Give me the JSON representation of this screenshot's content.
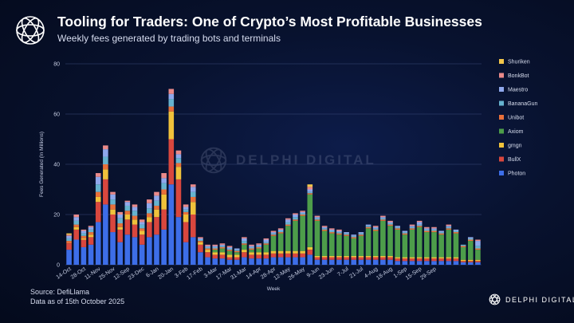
{
  "header": {
    "title": "Tooling for Traders: One of Crypto’s Most Profitable Businesses",
    "subtitle": "Weekly fees generated by trading bots and terminals"
  },
  "watermark": {
    "text": "DELPHI DIGITAL"
  },
  "footer": {
    "source_line1": "Source: DefiLlama",
    "source_line2": "Data as of 15th October 2025",
    "brand": "DELPHI DIGITAL"
  },
  "chart_data": {
    "type": "bar",
    "stacked": true,
    "ylabel": "Fees Generated (In Millions)",
    "xlabel": "Week",
    "ylim": [
      0,
      80
    ],
    "yticks": [
      0,
      20,
      40,
      60,
      80
    ],
    "grid": true,
    "legend_position": "right",
    "xtick_labels": [
      "14-Oct",
      "28-Oct",
      "11-Nov",
      "25-Nov",
      "12-Sep",
      "23-Dec",
      "6-Jan",
      "20-Jan",
      "3-Feb",
      "17-Feb",
      "3-Mar",
      "17-Mar",
      "31-Mar",
      "14-Apr",
      "28-Apr",
      "12-May",
      "26-May",
      "9-Jun",
      "23-Jun",
      "7-Jul",
      "21-Jul",
      "4-Aug",
      "18-Aug",
      "1-Sep",
      "15-Sep",
      "29-Sep"
    ],
    "series_order": [
      "Photon",
      "BullX",
      "gmgn",
      "Axiom",
      "Unibot",
      "BananaGun",
      "Maestro",
      "BonkBot",
      "Shuriken"
    ],
    "colors": {
      "Photon": "#3d6ee8",
      "BullX": "#d9473e",
      "gmgn": "#f0c23b",
      "Axiom": "#4d9d4a",
      "Unibot": "#e8703a",
      "BananaGun": "#66b3cf",
      "Maestro": "#8fa8ec",
      "BonkBot": "#ea8a8a",
      "Shuriken": "#f3c64a"
    },
    "legend_order": [
      "Shuriken",
      "BonkBot",
      "Maestro",
      "BananaGun",
      "Unibot",
      "Axiom",
      "gmgn",
      "BullX",
      "Photon"
    ],
    "weeks": [
      {
        "Photon": 6,
        "BullX": 2.5,
        "gmgn": 0,
        "Axiom": 0,
        "Unibot": 1,
        "BananaGun": 1,
        "Maestro": 1,
        "BonkBot": 0.5,
        "Shuriken": 0.5
      },
      {
        "Photon": 10,
        "BullX": 4,
        "gmgn": 1,
        "Axiom": 0,
        "Unibot": 1,
        "BananaGun": 1.5,
        "Maestro": 1.5,
        "BonkBot": 1,
        "Shuriken": 0
      },
      {
        "Photon": 7,
        "BullX": 3,
        "gmgn": 0.5,
        "Axiom": 0,
        "Unibot": 1,
        "BananaGun": 1,
        "Maestro": 1,
        "BonkBot": 0.5,
        "Shuriken": 0
      },
      {
        "Photon": 8,
        "BullX": 3,
        "gmgn": 1,
        "Axiom": 0,
        "Unibot": 1,
        "BananaGun": 1,
        "Maestro": 1,
        "BonkBot": 0.5,
        "Shuriken": 0
      },
      {
        "Photon": 17,
        "BullX": 8,
        "gmgn": 2,
        "Axiom": 0,
        "Unibot": 2,
        "BananaGun": 3,
        "Maestro": 3,
        "BonkBot": 1.5,
        "Shuriken": 0
      },
      {
        "Photon": 24,
        "BullX": 10,
        "gmgn": 4,
        "Axiom": 0,
        "Unibot": 2,
        "BananaGun": 3,
        "Maestro": 3,
        "BonkBot": 1.5,
        "Shuriken": 0
      },
      {
        "Photon": 13,
        "BullX": 7,
        "gmgn": 2,
        "Axiom": 0,
        "Unibot": 2,
        "BananaGun": 2,
        "Maestro": 2,
        "BonkBot": 1,
        "Shuriken": 0
      },
      {
        "Photon": 9,
        "BullX": 5,
        "gmgn": 1,
        "Axiom": 0,
        "Unibot": 1.5,
        "BananaGun": 2,
        "Maestro": 1.5,
        "BonkBot": 1,
        "Shuriken": 0
      },
      {
        "Photon": 12,
        "BullX": 6,
        "gmgn": 2,
        "Axiom": 0,
        "Unibot": 1.5,
        "BananaGun": 2,
        "Maestro": 1.5,
        "BonkBot": 0.5,
        "Shuriken": 0
      },
      {
        "Photon": 11,
        "BullX": 5,
        "gmgn": 2,
        "Axiom": 0,
        "Unibot": 1.5,
        "BananaGun": 2,
        "Maestro": 1.5,
        "BonkBot": 1,
        "Shuriken": 0
      },
      {
        "Photon": 8,
        "BullX": 4,
        "gmgn": 1.5,
        "Axiom": 0,
        "Unibot": 1,
        "BananaGun": 1.5,
        "Maestro": 1,
        "BonkBot": 1,
        "Shuriken": 0
      },
      {
        "Photon": 11,
        "BullX": 6,
        "gmgn": 2,
        "Axiom": 0,
        "Unibot": 1.5,
        "BananaGun": 2,
        "Maestro": 2,
        "BonkBot": 1.5,
        "Shuriken": 0
      },
      {
        "Photon": 12,
        "BullX": 7,
        "gmgn": 3,
        "Axiom": 0,
        "Unibot": 1.5,
        "BananaGun": 2,
        "Maestro": 2,
        "BonkBot": 1.5,
        "Shuriken": 0
      },
      {
        "Photon": 14,
        "BullX": 8,
        "gmgn": 6,
        "Axiom": 0,
        "Unibot": 2,
        "BananaGun": 2.5,
        "Maestro": 2,
        "BonkBot": 2,
        "Shuriken": 0
      },
      {
        "Photon": 32,
        "BullX": 18,
        "gmgn": 11,
        "Axiom": 0,
        "Unibot": 2,
        "BananaGun": 3,
        "Maestro": 2,
        "BonkBot": 2,
        "Shuriken": 0
      },
      {
        "Photon": 19,
        "BullX": 15,
        "gmgn": 5,
        "Axiom": 0,
        "Unibot": 1.5,
        "BananaGun": 2,
        "Maestro": 1.5,
        "BonkBot": 1.5,
        "Shuriken": 0
      },
      {
        "Photon": 9,
        "BullX": 8,
        "gmgn": 3,
        "Axiom": 0,
        "Unibot": 1,
        "BananaGun": 1,
        "Maestro": 1,
        "BonkBot": 1,
        "Shuriken": 0
      },
      {
        "Photon": 11,
        "BullX": 9,
        "gmgn": 5,
        "Axiom": 0,
        "Unibot": 2,
        "BananaGun": 2,
        "Maestro": 2,
        "BonkBot": 1,
        "Shuriken": 0
      },
      {
        "Photon": 5,
        "BullX": 3,
        "gmgn": 1,
        "Axiom": 0,
        "Unibot": 0.5,
        "BananaGun": 0.5,
        "Maestro": 0.5,
        "BonkBot": 0.5,
        "Shuriken": 0
      },
      {
        "Photon": 3,
        "BullX": 2,
        "gmgn": 1,
        "Axiom": 0,
        "Unibot": 0.5,
        "BananaGun": 0.5,
        "Maestro": 0.5,
        "BonkBot": 0.5,
        "Shuriken": 0
      },
      {
        "Photon": 2.5,
        "BullX": 1.5,
        "gmgn": 1,
        "Axiom": 1,
        "Unibot": 0.5,
        "BananaGun": 0.5,
        "Maestro": 0.5,
        "BonkBot": 0.5,
        "Shuriken": 0
      },
      {
        "Photon": 2.5,
        "BullX": 1.5,
        "gmgn": 1,
        "Axiom": 1.5,
        "Unibot": 0.5,
        "BananaGun": 0.5,
        "Maestro": 0.5,
        "BonkBot": 0.5,
        "Shuriken": 0
      },
      {
        "Photon": 2,
        "BullX": 1,
        "gmgn": 1,
        "Axiom": 1.5,
        "Unibot": 0.5,
        "BananaGun": 0.5,
        "Maestro": 0.5,
        "BonkBot": 0.5,
        "Shuriken": 0
      },
      {
        "Photon": 2,
        "BullX": 1,
        "gmgn": 1,
        "Axiom": 1,
        "Unibot": 0.5,
        "BananaGun": 0.5,
        "Maestro": 0.5,
        "BonkBot": 0,
        "Shuriken": 0
      },
      {
        "Photon": 3,
        "BullX": 2,
        "gmgn": 1,
        "Axiom": 2,
        "Unibot": 0.5,
        "BananaGun": 1,
        "Maestro": 1,
        "BonkBot": 0.5,
        "Shuriken": 0
      },
      {
        "Photon": 2.5,
        "BullX": 1.5,
        "gmgn": 1,
        "Axiom": 1,
        "Unibot": 0.5,
        "BananaGun": 0.5,
        "Maestro": 0.5,
        "BonkBot": 0.5,
        "Shuriken": 0
      },
      {
        "Photon": 2.5,
        "BullX": 1.5,
        "gmgn": 1,
        "Axiom": 1.5,
        "Unibot": 0.5,
        "BananaGun": 0.5,
        "Maestro": 0.5,
        "BonkBot": 0.5,
        "Shuriken": 0
      },
      {
        "Photon": 2.5,
        "BullX": 1.5,
        "gmgn": 1,
        "Axiom": 3,
        "Unibot": 0.5,
        "BananaGun": 0.5,
        "Maestro": 1,
        "BonkBot": 0.5,
        "Shuriken": 0
      },
      {
        "Photon": 3,
        "BullX": 1.5,
        "gmgn": 1,
        "Axiom": 6,
        "Unibot": 0.5,
        "BananaGun": 0.5,
        "Maestro": 0.5,
        "BonkBot": 0.5,
        "Shuriken": 0
      },
      {
        "Photon": 3,
        "BullX": 1.5,
        "gmgn": 1,
        "Axiom": 7,
        "Unibot": 0.5,
        "BananaGun": 0.5,
        "Maestro": 0.5,
        "BonkBot": 0.5,
        "Shuriken": 0
      },
      {
        "Photon": 3,
        "BullX": 1.5,
        "gmgn": 1,
        "Axiom": 10,
        "Unibot": 0.5,
        "BananaGun": 1,
        "Maestro": 1,
        "BonkBot": 0.5,
        "Shuriken": 0
      },
      {
        "Photon": 3,
        "BullX": 1.5,
        "gmgn": 1,
        "Axiom": 12,
        "Unibot": 0.5,
        "BananaGun": 1,
        "Maestro": 1,
        "BonkBot": 0.5,
        "Shuriken": 0
      },
      {
        "Photon": 3,
        "BullX": 1.5,
        "gmgn": 1,
        "Axiom": 14,
        "Unibot": 0.5,
        "BananaGun": 0.5,
        "Maestro": 0.5,
        "BonkBot": 0.5,
        "Shuriken": 0
      },
      {
        "Photon": 4,
        "BullX": 2,
        "gmgn": 1,
        "Axiom": 21,
        "Unibot": 0.5,
        "BananaGun": 0.5,
        "Maestro": 1,
        "BonkBot": 1,
        "Shuriken": 1
      },
      {
        "Photon": 2,
        "BullX": 1,
        "gmgn": 0.5,
        "Axiom": 14,
        "Unibot": 0.5,
        "BananaGun": 0.5,
        "Maestro": 0.5,
        "BonkBot": 0.5,
        "Shuriken": 0
      },
      {
        "Photon": 2,
        "BullX": 1,
        "gmgn": 0.5,
        "Axiom": 10,
        "Unibot": 0.5,
        "BananaGun": 0.5,
        "Maestro": 0.5,
        "BonkBot": 0.5,
        "Shuriken": 0
      },
      {
        "Photon": 2,
        "BullX": 1,
        "gmgn": 0.5,
        "Axiom": 9,
        "Unibot": 0.5,
        "BananaGun": 0.5,
        "Maestro": 0.5,
        "BonkBot": 0.5,
        "Shuriken": 0
      },
      {
        "Photon": 2,
        "BullX": 1,
        "gmgn": 0.5,
        "Axiom": 8.5,
        "Unibot": 0.5,
        "BananaGun": 0.5,
        "Maestro": 0.5,
        "BonkBot": 0.5,
        "Shuriken": 0
      },
      {
        "Photon": 2,
        "BullX": 1,
        "gmgn": 0.5,
        "Axiom": 8,
        "Unibot": 0.5,
        "BananaGun": 0.5,
        "Maestro": 0.5,
        "BonkBot": 0,
        "Shuriken": 0
      },
      {
        "Photon": 2,
        "BullX": 1,
        "gmgn": 0.5,
        "Axiom": 7,
        "Unibot": 0.5,
        "BananaGun": 0.5,
        "Maestro": 0.5,
        "BonkBot": 0,
        "Shuriken": 0
      },
      {
        "Photon": 2,
        "BullX": 1,
        "gmgn": 0.5,
        "Axiom": 8,
        "Unibot": 0.5,
        "BananaGun": 0.5,
        "Maestro": 0.5,
        "BonkBot": 0,
        "Shuriken": 0
      },
      {
        "Photon": 2,
        "BullX": 1,
        "gmgn": 0.5,
        "Axiom": 11,
        "Unibot": 0.5,
        "BananaGun": 0.5,
        "Maestro": 0.5,
        "BonkBot": 0,
        "Shuriken": 0
      },
      {
        "Photon": 2,
        "BullX": 1,
        "gmgn": 0.5,
        "Axiom": 10,
        "Unibot": 0.5,
        "BananaGun": 0.5,
        "Maestro": 0.5,
        "BonkBot": 0.5,
        "Shuriken": 0
      },
      {
        "Photon": 2,
        "BullX": 1,
        "gmgn": 0.5,
        "Axiom": 14,
        "Unibot": 0.5,
        "BananaGun": 0.5,
        "Maestro": 0.5,
        "BonkBot": 0.5,
        "Shuriken": 0
      },
      {
        "Photon": 2,
        "BullX": 1,
        "gmgn": 0.5,
        "Axiom": 12,
        "Unibot": 0.5,
        "BananaGun": 0.5,
        "Maestro": 0.5,
        "BonkBot": 0.5,
        "Shuriken": 0
      },
      {
        "Photon": 1.5,
        "BullX": 1,
        "gmgn": 0.5,
        "Axiom": 11,
        "Unibot": 0.5,
        "BananaGun": 0.5,
        "Maestro": 0.5,
        "BonkBot": 0,
        "Shuriken": 0
      },
      {
        "Photon": 1.5,
        "BullX": 1,
        "gmgn": 0.5,
        "Axiom": 9,
        "Unibot": 0.5,
        "BananaGun": 0.5,
        "Maestro": 0.5,
        "BonkBot": 0,
        "Shuriken": 0
      },
      {
        "Photon": 1.5,
        "BullX": 1,
        "gmgn": 0.5,
        "Axiom": 11,
        "Unibot": 0.5,
        "BananaGun": 0.5,
        "Maestro": 0.5,
        "BonkBot": 0.5,
        "Shuriken": 0
      },
      {
        "Photon": 1.5,
        "BullX": 1,
        "gmgn": 0.5,
        "Axiom": 12,
        "Unibot": 0.5,
        "BananaGun": 0.5,
        "Maestro": 1,
        "BonkBot": 0.5,
        "Shuriken": 0
      },
      {
        "Photon": 1.5,
        "BullX": 1,
        "gmgn": 0.5,
        "Axiom": 10,
        "Unibot": 0.5,
        "BananaGun": 0.5,
        "Maestro": 0.5,
        "BonkBot": 0.5,
        "Shuriken": 0
      },
      {
        "Photon": 1.5,
        "BullX": 1,
        "gmgn": 0.5,
        "Axiom": 10,
        "Unibot": 0.5,
        "BananaGun": 0.5,
        "Maestro": 0.5,
        "BonkBot": 0.5,
        "Shuriken": 0
      },
      {
        "Photon": 1.5,
        "BullX": 1,
        "gmgn": 0.5,
        "Axiom": 9,
        "Unibot": 0.5,
        "BananaGun": 0.5,
        "Maestro": 0.5,
        "BonkBot": 0,
        "Shuriken": 0
      },
      {
        "Photon": 1.5,
        "BullX": 1,
        "gmgn": 0.5,
        "Axiom": 11,
        "Unibot": 0.5,
        "BananaGun": 0.5,
        "Maestro": 0.5,
        "BonkBot": 0.5,
        "Shuriken": 0
      },
      {
        "Photon": 1.5,
        "BullX": 1,
        "gmgn": 0.5,
        "Axiom": 9.5,
        "Unibot": 0.5,
        "BananaGun": 0.5,
        "Maestro": 0.5,
        "BonkBot": 0,
        "Shuriken": 0
      },
      {
        "Photon": 1,
        "BullX": 0.5,
        "gmgn": 0.5,
        "Axiom": 5,
        "Unibot": 0.5,
        "BananaGun": 0.5,
        "Maestro": 0,
        "BonkBot": 0,
        "Shuriken": 0
      },
      {
        "Photon": 1,
        "BullX": 0.5,
        "gmgn": 0.5,
        "Axiom": 7.5,
        "Unibot": 0.5,
        "BananaGun": 0.5,
        "Maestro": 0.5,
        "BonkBot": 0,
        "Shuriken": 0
      },
      {
        "Photon": 1,
        "BullX": 0.5,
        "gmgn": 0.5,
        "Axiom": 4,
        "Unibot": 0.5,
        "BananaGun": 1,
        "Maestro": 2,
        "BonkBot": 0.5,
        "Shuriken": 0
      }
    ]
  }
}
